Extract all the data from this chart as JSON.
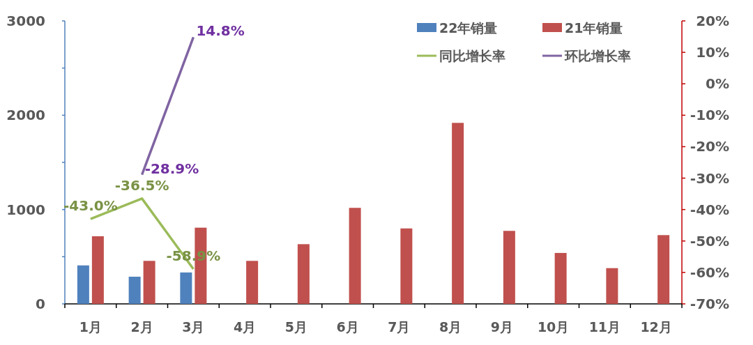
{
  "chart_data": {
    "type": "bar",
    "categories": [
      "1月",
      "2月",
      "3月",
      "4月",
      "5月",
      "6月",
      "7月",
      "8月",
      "9月",
      "10月",
      "11月",
      "12月"
    ],
    "series": [
      {
        "name": "22年销量",
        "type": "bar",
        "color": "#4f81bd",
        "values": [
          408,
          288,
          333,
          null,
          null,
          null,
          null,
          null,
          null,
          null,
          null,
          null
        ]
      },
      {
        "name": "21年销量",
        "type": "bar",
        "color": "#c0504d",
        "values": [
          717,
          456,
          808,
          456,
          633,
          1018,
          800,
          1919,
          774,
          540,
          379,
          729
        ]
      },
      {
        "name": "同比增长率",
        "type": "line",
        "axis": "y2",
        "color": "#9bbb59",
        "values": [
          -43.0,
          -36.5,
          -58.9,
          null,
          null,
          null,
          null,
          null,
          null,
          null,
          null,
          null
        ],
        "value_labels": [
          "-43.0%",
          "-36.5%",
          "-58.9%",
          null,
          null,
          null,
          null,
          null,
          null,
          null,
          null,
          null
        ]
      },
      {
        "name": "环比增长率",
        "type": "line",
        "axis": "y2",
        "color": "#8064a2",
        "values": [
          null,
          -28.9,
          14.8,
          null,
          null,
          null,
          null,
          null,
          null,
          null,
          null,
          null
        ],
        "value_labels": [
          null,
          "-28.9%",
          "14.8%",
          null,
          null,
          null,
          null,
          null,
          null,
          null,
          null,
          null
        ]
      }
    ],
    "ylim": [
      0,
      3000
    ],
    "yticks": [
      0,
      {
        "value": 500,
        "label": null
      },
      1000,
      {
        "value": 1500,
        "label": null
      },
      2000,
      {
        "value": 2500,
        "label": null
      },
      3000
    ],
    "y2lim": [
      -70,
      20
    ],
    "y2ticks": [
      {
        "value": -70,
        "label": "-70%"
      },
      {
        "value": -60,
        "label": "-60%"
      },
      {
        "value": -50,
        "label": "-50%"
      },
      {
        "value": -40,
        "label": "-40%"
      },
      {
        "value": -30,
        "label": "-30%"
      },
      {
        "value": -20,
        "label": "-20%"
      },
      {
        "value": -10,
        "label": "-10%"
      },
      {
        "value": 0,
        "label": "0%"
      },
      {
        "value": 10,
        "label": "10%"
      },
      {
        "value": 20,
        "label": "20%"
      }
    ],
    "legend": "top right"
  }
}
